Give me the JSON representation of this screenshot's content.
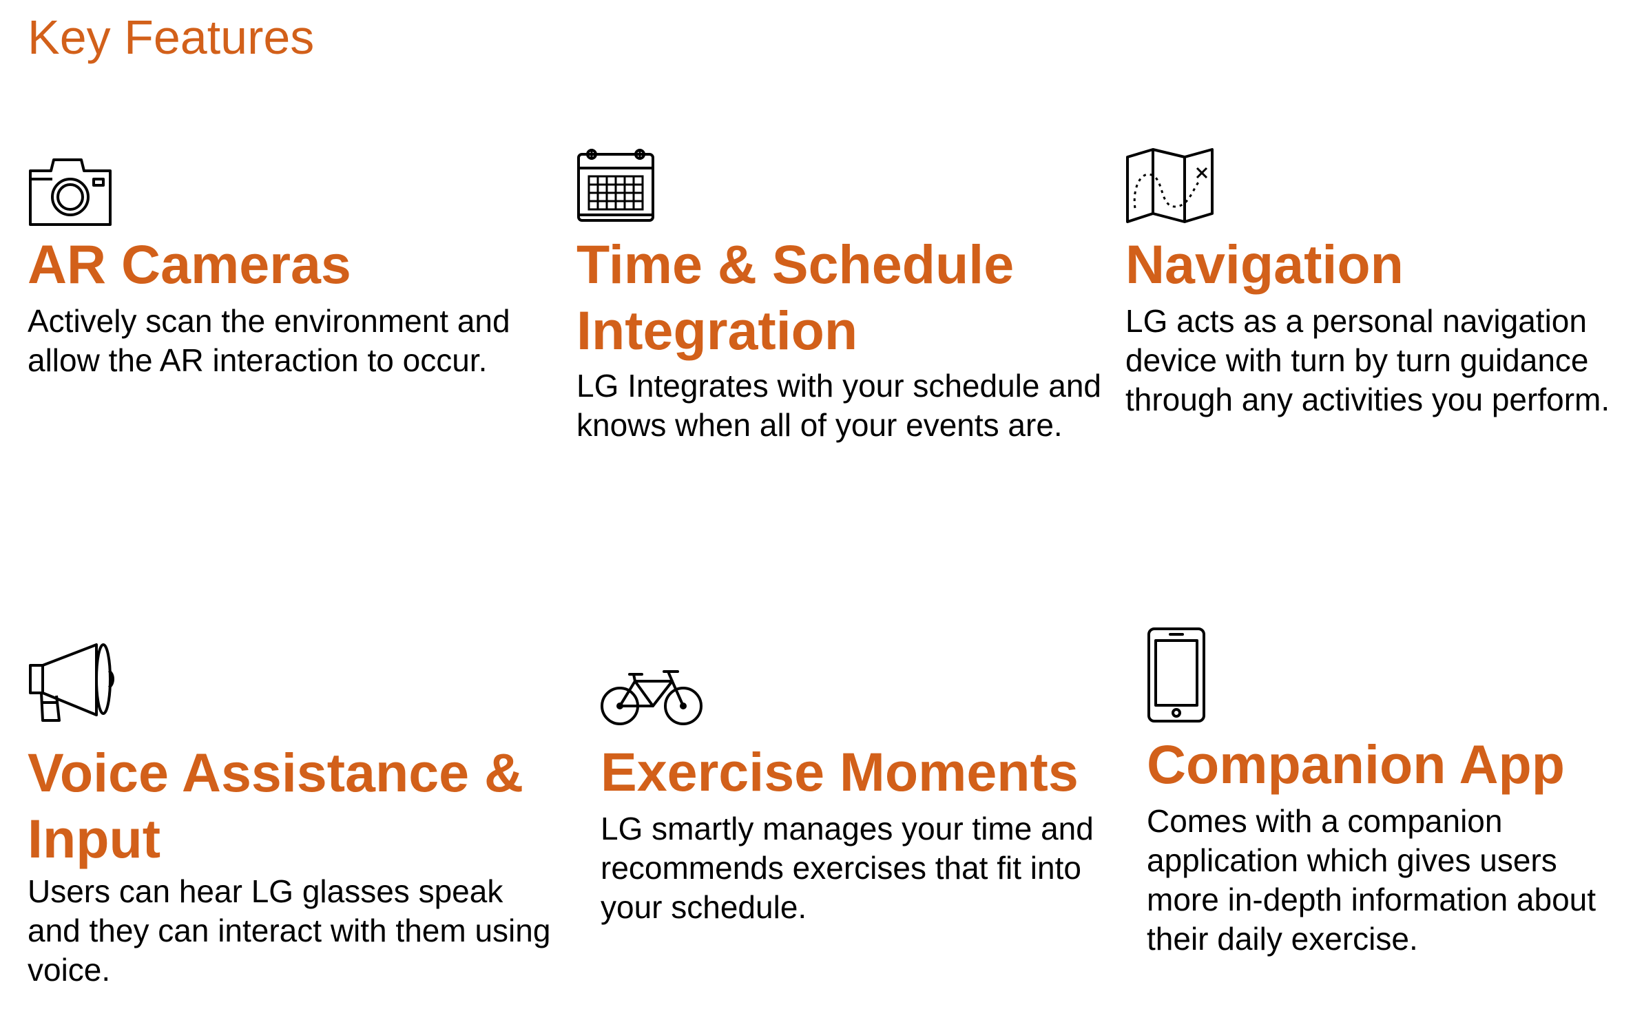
{
  "page": {
    "title": "Key Features"
  },
  "colors": {
    "accent": "#D2601A",
    "text": "#000000",
    "background": "#FFFFFF"
  },
  "features": [
    {
      "icon": "camera-icon",
      "title": "AR Cameras",
      "description": "Actively scan the environment and allow the AR interaction to occur."
    },
    {
      "icon": "calendar-icon",
      "title": "Time & Schedule Integration",
      "description": "LG Integrates with your schedule and knows when all of your events are."
    },
    {
      "icon": "map-icon",
      "title": "Navigation",
      "description": "LG acts as a personal navigation device with turn by turn guidance through any activities you perform."
    },
    {
      "icon": "megaphone-icon",
      "title": "Voice Assistance & Input",
      "description": "Users can hear LG glasses speak and they can interact with them using voice."
    },
    {
      "icon": "bicycle-icon",
      "title": "Exercise Moments",
      "description": "LG smartly manages your time and recommends exercises that fit into your schedule."
    },
    {
      "icon": "smartphone-icon",
      "title": "Companion App",
      "description": "Comes with a companion application which gives users more in-depth information about their daily exercise."
    }
  ]
}
